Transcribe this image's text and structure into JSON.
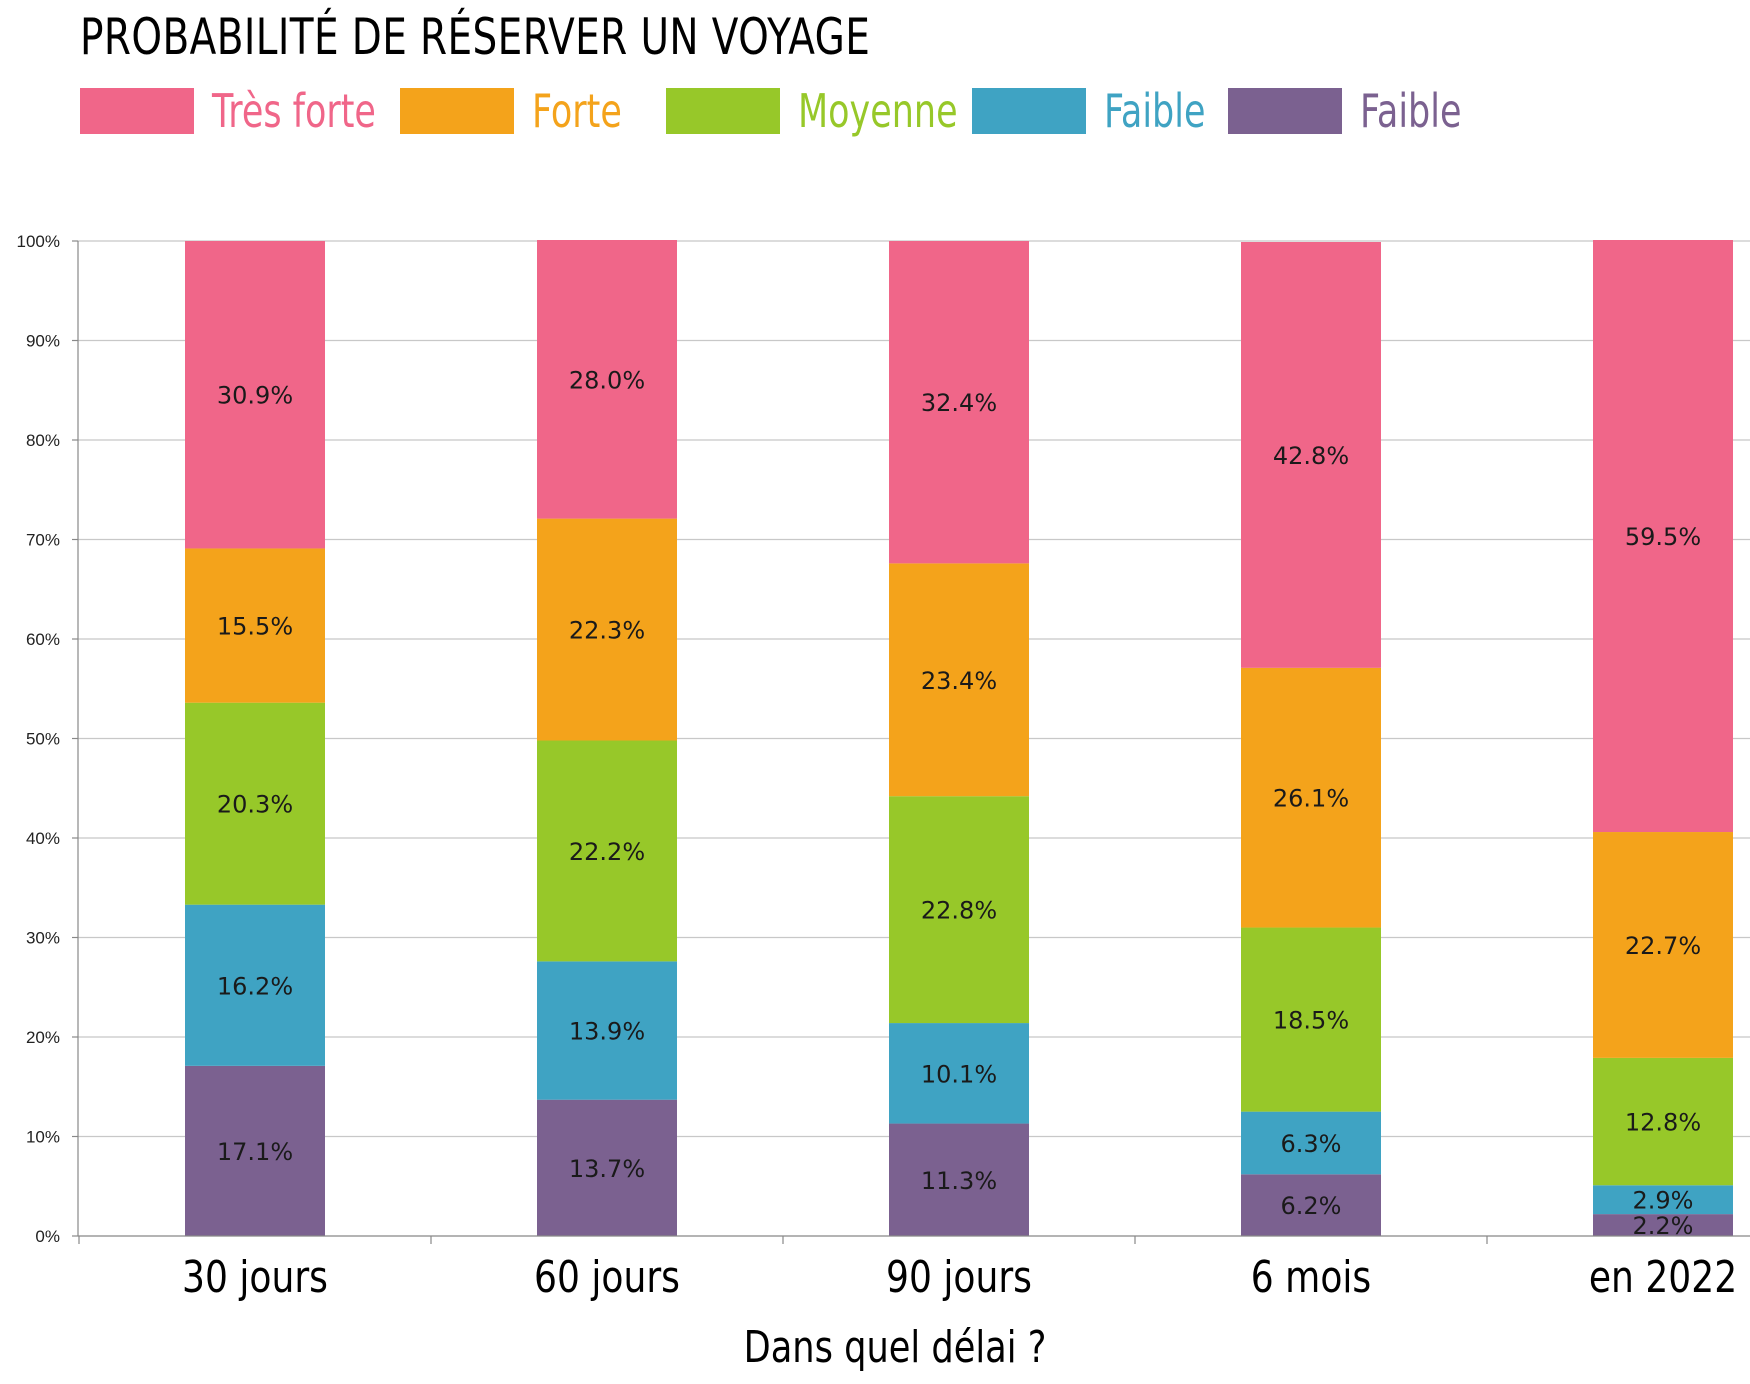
{
  "chart_data": {
    "type": "bar",
    "stacked": true,
    "title": "PROBABILITÉ DE RÉSERVER UN VOYAGE",
    "xlabel": "Dans quel délai ?",
    "ylabel": "",
    "ylim": [
      0,
      100
    ],
    "y_ticks": [
      "0%",
      "10%",
      "20%",
      "30%",
      "40%",
      "50%",
      "60%",
      "70%",
      "80%",
      "90%",
      "100%"
    ],
    "categories": [
      "30 jours",
      "60 jours",
      "90 jours",
      "6 mois",
      "en 2022"
    ],
    "series": [
      {
        "name": "Faible",
        "color": "#7b6190",
        "values": [
          17.1,
          13.7,
          11.3,
          6.2,
          2.2
        ],
        "labels": [
          "17.1%",
          "13.7%",
          "11.3%",
          "6.2%",
          "2.2%"
        ]
      },
      {
        "name": "Faible",
        "color": "#3fa3c3",
        "values": [
          16.2,
          13.9,
          10.1,
          6.3,
          2.9
        ],
        "labels": [
          "16.2%",
          "13.9%",
          "10.1%",
          "6.3%",
          "2.9%"
        ]
      },
      {
        "name": "Moyenne",
        "color": "#97c829",
        "values": [
          20.3,
          22.2,
          22.8,
          18.5,
          12.8
        ],
        "labels": [
          "20.3%",
          "22.2%",
          "22.8%",
          "18.5%",
          "12.8%"
        ]
      },
      {
        "name": "Forte",
        "color": "#f4a31b",
        "values": [
          15.5,
          22.3,
          23.4,
          26.1,
          22.7
        ],
        "labels": [
          "15.5%",
          "22.3%",
          "23.4%",
          "26.1%",
          "22.7%"
        ]
      },
      {
        "name": "Très forte",
        "color": "#f06689",
        "values": [
          30.9,
          28.0,
          32.4,
          42.8,
          59.5
        ],
        "labels": [
          "30.9%",
          "28.0%",
          "32.4%",
          "42.8%",
          "59.5%"
        ]
      }
    ],
    "legend": [
      {
        "name": "Très forte",
        "color": "#f06689"
      },
      {
        "name": "Forte",
        "color": "#f4a31b"
      },
      {
        "name": "Moyenne",
        "color": "#97c829"
      },
      {
        "name": "Faible",
        "color": "#3fa3c3"
      },
      {
        "name": "Faible",
        "color": "#7b6190"
      }
    ],
    "grid": true,
    "legend_position": "top-left"
  }
}
